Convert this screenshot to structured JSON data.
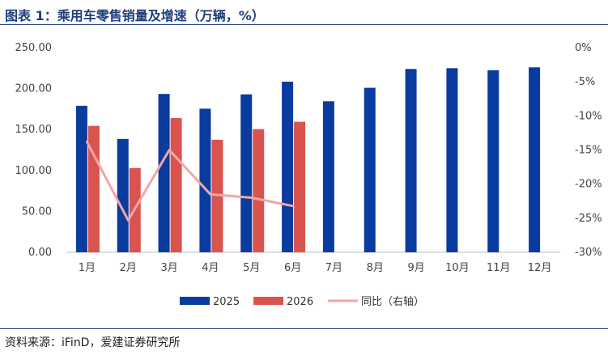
{
  "title": "图表 1：乘用车零售销量及增速（万辆，%）",
  "source": "资料来源：iFinD，爱建证券研究所",
  "colors": {
    "series_2025": "#0a3b9e",
    "series_2026": "#d9534f",
    "yoy": "#f2a6a6",
    "header_rule": "#1f3e7a"
  },
  "chart_data": {
    "type": "bar",
    "categories": [
      "1月",
      "2月",
      "3月",
      "4月",
      "5月",
      "6月",
      "7月",
      "8月",
      "9月",
      "10月",
      "11月",
      "12月"
    ],
    "series": [
      {
        "name": "2025",
        "type": "bar",
        "axis": "left",
        "values": [
          179.0,
          138.5,
          193.5,
          175.5,
          193.0,
          208.5,
          184.5,
          201.0,
          224.0,
          225.0,
          222.5,
          226.0
        ]
      },
      {
        "name": "2026",
        "type": "bar",
        "axis": "left",
        "values": [
          154.5,
          103.0,
          164.0,
          137.5,
          150.5,
          159.5,
          null,
          null,
          null,
          null,
          null,
          null
        ]
      },
      {
        "name": "同比（右轴）",
        "type": "line",
        "axis": "right",
        "values": [
          -13.8,
          -25.3,
          -15.0,
          -21.5,
          -22.0,
          -23.2,
          null,
          null,
          null,
          null,
          null,
          null
        ]
      }
    ],
    "left_axis": {
      "min": 0,
      "max": 250,
      "step": 50,
      "tick_labels": [
        "0.00",
        "50.00",
        "100.00",
        "150.00",
        "200.00",
        "250.00"
      ]
    },
    "right_axis": {
      "min": -30,
      "max": 0,
      "step": 5,
      "tick_labels": [
        "0%",
        "-5%",
        "-10%",
        "-15%",
        "-20%",
        "-25%",
        "-30%"
      ]
    },
    "legend": [
      "2025",
      "2026",
      "同比（右轴）"
    ],
    "legend_position": "bottom",
    "grid": false
  }
}
